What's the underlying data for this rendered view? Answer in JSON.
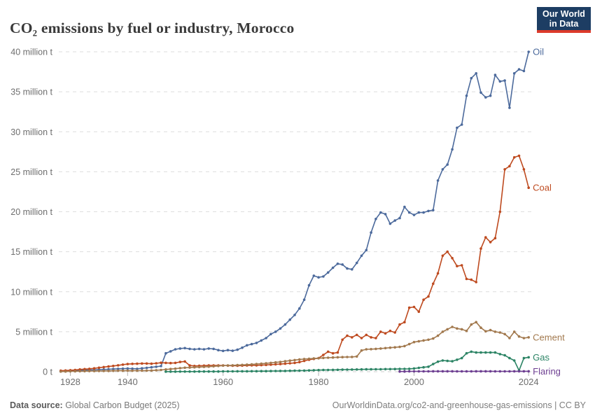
{
  "header": {
    "title": "CO₂ emissions by fuel or industry, Morocco"
  },
  "logo": {
    "line1": "Our World",
    "line2": "in Data",
    "bg_color": "#1d3d63",
    "accent_color": "#dc3a2b"
  },
  "footer": {
    "source_label": "Data source:",
    "source_value": " Global Carbon Budget (2025)",
    "link_and_license": "OurWorldinData.org/co2-and-greenhouse-gas-emissions | CC BY"
  },
  "chart_data": {
    "type": "line",
    "title": "CO₂ emissions by fuel or industry, Morocco",
    "unit": "million t",
    "grid": "dashed-horizontal",
    "legend_position": "end-of-line-labels",
    "x_range": [
      1925,
      2025
    ],
    "y_range": [
      0,
      40
    ],
    "x_ticks": [
      1928,
      1940,
      1960,
      1980,
      2000,
      2024
    ],
    "y_ticks": [
      {
        "value": 0,
        "label": "0 t"
      },
      {
        "value": 5,
        "label": "5 million t"
      },
      {
        "value": 10,
        "label": "10 million t"
      },
      {
        "value": 15,
        "label": "15 million t"
      },
      {
        "value": 20,
        "label": "20 million t"
      },
      {
        "value": 25,
        "label": "25 million t"
      },
      {
        "value": 30,
        "label": "30 million t"
      },
      {
        "value": 35,
        "label": "35 million t"
      },
      {
        "value": 40,
        "label": "40 million t"
      }
    ],
    "series": [
      {
        "name": "Oil",
        "color": "#4C6A9C",
        "start_year": 1926,
        "values": [
          0.1,
          0.11,
          0.13,
          0.15,
          0.18,
          0.2,
          0.21,
          0.23,
          0.25,
          0.28,
          0.3,
          0.33,
          0.36,
          0.38,
          0.4,
          0.38,
          0.36,
          0.42,
          0.48,
          0.55,
          0.62,
          0.7,
          2.3,
          2.55,
          2.8,
          2.9,
          2.95,
          2.85,
          2.8,
          2.85,
          2.8,
          2.9,
          2.85,
          2.7,
          2.6,
          2.7,
          2.62,
          2.75,
          3.0,
          3.3,
          3.45,
          3.6,
          3.9,
          4.2,
          4.7,
          5.0,
          5.4,
          5.9,
          6.5,
          7.1,
          7.9,
          9.0,
          10.8,
          12.0,
          11.8,
          11.9,
          12.4,
          13.0,
          13.5,
          13.4,
          12.9,
          12.8,
          13.6,
          14.5,
          15.2,
          17.4,
          19.1,
          19.9,
          19.7,
          18.5,
          18.9,
          19.2,
          20.6,
          19.9,
          19.6,
          19.9,
          19.9,
          20.1,
          20.2,
          23.9,
          25.3,
          25.9,
          27.8,
          30.5,
          30.9,
          34.5,
          36.7,
          37.3,
          34.9,
          34.3,
          34.5,
          37.1,
          36.3,
          36.4,
          33.0,
          37.3,
          37.8,
          37.6,
          40.0
        ]
      },
      {
        "name": "Coal",
        "color": "#BE4A1F",
        "start_year": 1926,
        "values": [
          0.12,
          0.15,
          0.18,
          0.22,
          0.28,
          0.32,
          0.36,
          0.42,
          0.5,
          0.58,
          0.65,
          0.72,
          0.8,
          0.88,
          0.95,
          0.98,
          1.0,
          1.02,
          1.02,
          1.0,
          1.05,
          1.12,
          1.1,
          1.08,
          1.1,
          1.22,
          1.28,
          0.78,
          0.72,
          0.74,
          0.76,
          0.78,
          0.78,
          0.78,
          0.78,
          0.76,
          0.74,
          0.74,
          0.76,
          0.78,
          0.8,
          0.8,
          0.82,
          0.85,
          0.88,
          0.92,
          0.95,
          1.0,
          1.05,
          1.1,
          1.2,
          1.35,
          1.5,
          1.6,
          1.7,
          2.1,
          2.5,
          2.3,
          2.4,
          4.0,
          4.5,
          4.3,
          4.6,
          4.2,
          4.6,
          4.3,
          4.2,
          5.0,
          4.8,
          5.1,
          4.9,
          5.9,
          6.2,
          8.0,
          8.1,
          7.5,
          9.0,
          9.4,
          11.0,
          12.3,
          14.5,
          15.0,
          14.2,
          13.2,
          13.3,
          11.6,
          11.5,
          11.2,
          15.4,
          16.8,
          16.2,
          16.7,
          20.0,
          25.3,
          25.7,
          26.8,
          27.0,
          25.3,
          23.0
        ]
      },
      {
        "name": "Cement",
        "color": "#A2794E",
        "start_year": 1926,
        "values": [
          0.02,
          0.03,
          0.04,
          0.05,
          0.06,
          0.07,
          0.08,
          0.08,
          0.09,
          0.1,
          0.1,
          0.11,
          0.12,
          0.12,
          0.12,
          0.12,
          0.13,
          0.13,
          0.14,
          0.15,
          0.18,
          0.22,
          0.28,
          0.33,
          0.38,
          0.45,
          0.5,
          0.52,
          0.55,
          0.58,
          0.6,
          0.63,
          0.67,
          0.72,
          0.76,
          0.78,
          0.8,
          0.82,
          0.85,
          0.88,
          0.92,
          0.96,
          1.0,
          1.05,
          1.1,
          1.16,
          1.22,
          1.3,
          1.38,
          1.45,
          1.52,
          1.58,
          1.62,
          1.65,
          1.68,
          1.72,
          1.75,
          1.78,
          1.8,
          1.82,
          1.84,
          1.85,
          1.9,
          2.65,
          2.8,
          2.82,
          2.85,
          2.9,
          2.95,
          3.0,
          3.05,
          3.1,
          3.2,
          3.45,
          3.7,
          3.8,
          3.9,
          4.0,
          4.15,
          4.5,
          5.0,
          5.3,
          5.6,
          5.4,
          5.3,
          5.1,
          5.9,
          6.2,
          5.5,
          5.05,
          5.2,
          5.0,
          4.9,
          4.7,
          4.2,
          5.0,
          4.4,
          4.2,
          4.3
        ]
      },
      {
        "name": "Gas",
        "color": "#2C8465",
        "start_year": 1948,
        "values": [
          0.01,
          0.01,
          0.01,
          0.02,
          0.02,
          0.02,
          0.02,
          0.03,
          0.03,
          0.03,
          0.03,
          0.03,
          0.04,
          0.04,
          0.04,
          0.05,
          0.05,
          0.05,
          0.06,
          0.06,
          0.07,
          0.07,
          0.08,
          0.09,
          0.1,
          0.1,
          0.11,
          0.12,
          0.13,
          0.14,
          0.16,
          0.18,
          0.2,
          0.21,
          0.22,
          0.23,
          0.24,
          0.25,
          0.26,
          0.27,
          0.28,
          0.29,
          0.3,
          0.3,
          0.31,
          0.31,
          0.32,
          0.32,
          0.33,
          0.34,
          0.35,
          0.36,
          0.4,
          0.48,
          0.55,
          0.62,
          0.95,
          1.25,
          1.4,
          1.35,
          1.3,
          1.5,
          1.7,
          2.3,
          2.5,
          2.4,
          2.4,
          2.4,
          2.4,
          2.4,
          2.2,
          2.05,
          1.7,
          1.4,
          0.15,
          1.7,
          1.8
        ]
      },
      {
        "name": "Flaring",
        "color": "#6D3E91",
        "start_year": 1997,
        "values": [
          0.03,
          0.03,
          0.04,
          0.04,
          0.04,
          0.04,
          0.04,
          0.05,
          0.05,
          0.05,
          0.05,
          0.05,
          0.04,
          0.04,
          0.04,
          0.04,
          0.05,
          0.05,
          0.05,
          0.05,
          0.04,
          0.04,
          0.04,
          0.04,
          0.05,
          0.05,
          0.05,
          0.05
        ]
      }
    ]
  }
}
